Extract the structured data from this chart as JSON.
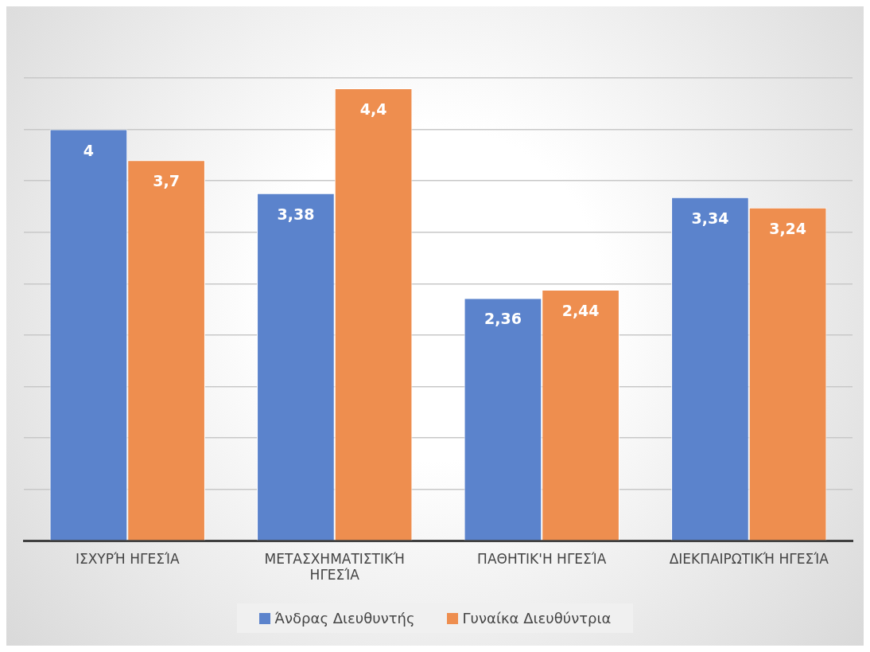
{
  "chart_data": {
    "type": "bar",
    "categories": [
      "ΙΣΧΥΡΉ ΗΓΕΣΊΑ",
      "ΜΕΤΑΣΧΗΜΑΤΙΣΤΙΚΉ ΗΓΕΣΊΑ",
      "ΠΑΘΗΤΙΚ'Η ΗΓΕΣΊΑ",
      "ΔΙΕΚΠΑΙΡΩΤΙΚΉ ΗΓΕΣΊΑ"
    ],
    "series": [
      {
        "name": "Άνδρας Διευθυντής",
        "color": "#5b83cc",
        "values": [
          4,
          3.38,
          2.36,
          3.34
        ],
        "value_labels": [
          "4",
          "3,38",
          "2,36",
          "3,34"
        ]
      },
      {
        "name": "Γυναίκα Διευθύντρια",
        "color": "#ee8e4f",
        "values": [
          3.7,
          4.4,
          2.44,
          3.24
        ],
        "value_labels": [
          "3,7",
          "4,4",
          "2,44",
          "3,24"
        ]
      }
    ],
    "ylim": [
      0,
      4.5
    ],
    "yticks": [
      {
        "value": 0,
        "label": null
      },
      {
        "value": 0.5,
        "label": null
      },
      {
        "value": 1,
        "label": null
      },
      {
        "value": 1.5,
        "label": null
      },
      {
        "value": 2,
        "label": null
      },
      {
        "value": 2.5,
        "label": null
      },
      {
        "value": 3,
        "label": null
      },
      {
        "value": 3.5,
        "label": null
      },
      {
        "value": 4,
        "label": null
      },
      {
        "value": 4.5,
        "label": null
      }
    ],
    "tick_labels": "x",
    "grid": "y",
    "legend": "bottom"
  }
}
